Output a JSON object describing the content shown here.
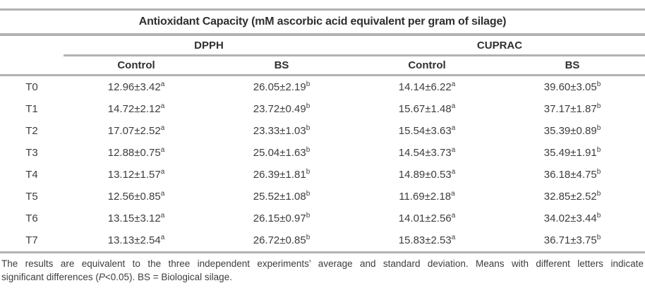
{
  "title": "Antioxidant Capacity (mM ascorbic acid equivalent per gram of silage)",
  "table": {
    "group_headers": [
      "DPPH",
      "CUPRAC"
    ],
    "col_headers": [
      "Control",
      "BS",
      "Control",
      "BS"
    ],
    "rows": [
      {
        "label": "T0",
        "cells": [
          {
            "v": "12.96±3.42",
            "s": "a"
          },
          {
            "v": "26.05±2.19",
            "s": "b"
          },
          {
            "v": "14.14±6.22",
            "s": "a"
          },
          {
            "v": "39.60±3.05",
            "s": "b"
          }
        ]
      },
      {
        "label": "T1",
        "cells": [
          {
            "v": "14.72±2.12",
            "s": "a"
          },
          {
            "v": "23.72±0.49",
            "s": "b"
          },
          {
            "v": "15.67±1.48",
            "s": "a"
          },
          {
            "v": "37.17±1.87",
            "s": "b"
          }
        ]
      },
      {
        "label": "T2",
        "cells": [
          {
            "v": "17.07±2.52",
            "s": "a"
          },
          {
            "v": "23.33±1.03",
            "s": "b"
          },
          {
            "v": "15.54±3.63",
            "s": "a"
          },
          {
            "v": "35.39±0.89",
            "s": "b"
          }
        ]
      },
      {
        "label": "T3",
        "cells": [
          {
            "v": "12.88±0.75",
            "s": "a"
          },
          {
            "v": "25.04±1.63",
            "s": "b"
          },
          {
            "v": "14.54±3.73",
            "s": "a"
          },
          {
            "v": "35.49±1.91",
            "s": "b"
          }
        ]
      },
      {
        "label": "T4",
        "cells": [
          {
            "v": "13.12±1.57",
            "s": "a"
          },
          {
            "v": "26.39±1.81",
            "s": "b"
          },
          {
            "v": "14.89±0.53",
            "s": "a"
          },
          {
            "v": "36.18±4.75",
            "s": "b"
          }
        ]
      },
      {
        "label": "T5",
        "cells": [
          {
            "v": "12.56±0.85",
            "s": "a"
          },
          {
            "v": "25.52±1.08",
            "s": "b"
          },
          {
            "v": "11.69±2.18",
            "s": "a"
          },
          {
            "v": "32.85±2.52",
            "s": "b"
          }
        ]
      },
      {
        "label": "T6",
        "cells": [
          {
            "v": "13.15±3.12",
            "s": "a"
          },
          {
            "v": "26.15±0.97",
            "s": "b"
          },
          {
            "v": "14.01±2.56",
            "s": "a"
          },
          {
            "v": "34.02±3.44",
            "s": "b"
          }
        ]
      },
      {
        "label": "T7",
        "cells": [
          {
            "v": "13.13±2.54",
            "s": "a"
          },
          {
            "v": "26.72±0.85",
            "s": "b"
          },
          {
            "v": "15.83±2.53",
            "s": "a"
          },
          {
            "v": "36.71±3.75",
            "s": "b"
          }
        ]
      }
    ]
  },
  "footnote": {
    "line1": "The results are equivalent to the three independent experiments’ average and standard deviation. Means with different letters indicate",
    "line2_pre": "significant differences (",
    "line2_p": "P",
    "line2_post": "<0.05). BS = Biological silage."
  },
  "colors": {
    "rule": "#b2b2b2",
    "text": "#3d3d3d",
    "heading_text": "#2f2f2f",
    "background": "#ffffff"
  }
}
